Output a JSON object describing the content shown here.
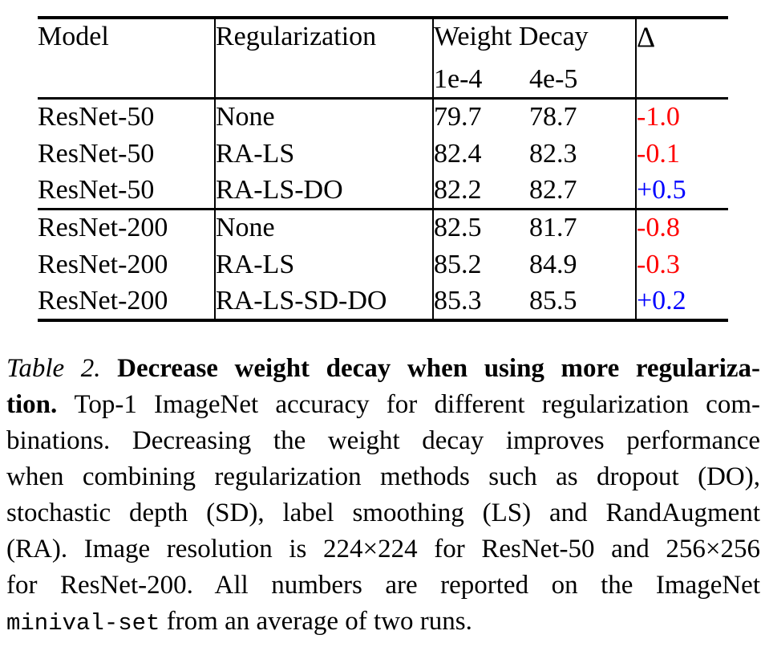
{
  "table": {
    "header": {
      "model": "Model",
      "regularization": "Regularization",
      "weight_decay": "Weight Decay",
      "wd_sub_1": "1e-4",
      "wd_sub_2": "4e-5",
      "delta": "Δ"
    },
    "groups": [
      {
        "rows": [
          {
            "model": "ResNet-50",
            "regularization": "None",
            "wd_1e4": "79.7",
            "wd_4e5": "78.7",
            "delta": "-1.0",
            "delta_color": "negative"
          },
          {
            "model": "ResNet-50",
            "regularization": "RA-LS",
            "wd_1e4": "82.4",
            "wd_4e5": "82.3",
            "delta": "-0.1",
            "delta_color": "negative"
          },
          {
            "model": "ResNet-50",
            "regularization": "RA-LS-DO",
            "wd_1e4": "82.2",
            "wd_4e5": "82.7",
            "delta": "+0.5",
            "delta_color": "positive"
          }
        ]
      },
      {
        "rows": [
          {
            "model": "ResNet-200",
            "regularization": "None",
            "wd_1e4": "82.5",
            "wd_4e5": "81.7",
            "delta": "-0.8",
            "delta_color": "negative"
          },
          {
            "model": "ResNet-200",
            "regularization": "RA-LS",
            "wd_1e4": "85.2",
            "wd_4e5": "84.9",
            "delta": "-0.3",
            "delta_color": "negative"
          },
          {
            "model": "ResNet-200",
            "regularization": "RA-LS-SD-DO",
            "wd_1e4": "85.3",
            "wd_4e5": "85.5",
            "delta": "+0.2",
            "delta_color": "positive"
          }
        ]
      }
    ]
  },
  "colors": {
    "negative": "#ff0000",
    "positive": "#0000ff",
    "text": "#000000",
    "rule": "#000000"
  },
  "caption": {
    "lines": [
      {
        "segments": [
          {
            "text": "Table 2. ",
            "style": "italic"
          },
          {
            "text": "Decrease weight decay when using more regulariza-",
            "style": "bold"
          }
        ]
      },
      {
        "segments": [
          {
            "text": "tion. ",
            "style": "bold"
          },
          {
            "text": "Top-1 ImageNet accuracy for different regularization com-",
            "style": "normal"
          }
        ]
      },
      {
        "segments": [
          {
            "text": "binations. Decreasing the weight decay improves performance",
            "style": "normal"
          }
        ]
      },
      {
        "segments": [
          {
            "text": "when combining regularization methods such as dropout (DO),",
            "style": "normal"
          }
        ]
      },
      {
        "segments": [
          {
            "text": "stochastic depth (SD), label smoothing (LS) and RandAugment",
            "style": "normal"
          }
        ]
      },
      {
        "segments": [
          {
            "text": "(RA). Image resolution is 224×224 for ResNet-50 and 256×256",
            "style": "normal"
          }
        ]
      },
      {
        "segments": [
          {
            "text": "for ResNet-200. All numbers are reported on the ImageNet",
            "style": "normal"
          }
        ]
      },
      {
        "last": true,
        "segments": [
          {
            "text": "minival-set",
            "style": "mono"
          },
          {
            "text": " from an average of two runs.",
            "style": "normal"
          }
        ]
      }
    ]
  }
}
